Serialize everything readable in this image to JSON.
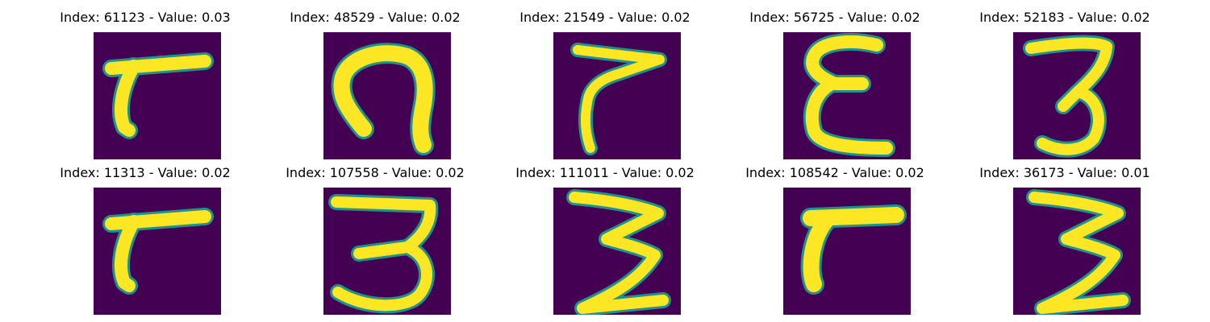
{
  "colors": {
    "background": "#440154",
    "stroke_edge": "#21918c",
    "stroke_core": "#fde725"
  },
  "panels": [
    {
      "title": "Index: 61123 - Value: 0.03",
      "index": 61123,
      "value": 0.03,
      "glyph": "seven"
    },
    {
      "title": "Index: 48529 - Value: 0.02",
      "index": 48529,
      "value": 0.02,
      "glyph": "n"
    },
    {
      "title": "Index: 21549 - Value: 0.02",
      "index": 21549,
      "value": 0.02,
      "glyph": "seven-thin"
    },
    {
      "title": "Index: 56725 - Value: 0.02",
      "index": 56725,
      "value": 0.02,
      "glyph": "e"
    },
    {
      "title": "Index: 52183 - Value: 0.02",
      "index": 52183,
      "value": 0.02,
      "glyph": "three"
    },
    {
      "title": "Index: 11313 - Value: 0.02",
      "index": 11313,
      "value": 0.02,
      "glyph": "seven"
    },
    {
      "title": "Index: 107558 - Value: 0.02",
      "index": 107558,
      "value": 0.02,
      "glyph": "three-wide"
    },
    {
      "title": "Index: 111011 - Value: 0.02",
      "index": 111011,
      "value": 0.02,
      "glyph": "three-zig"
    },
    {
      "title": "Index: 108542 - Value: 0.02",
      "index": 108542,
      "value": 0.02,
      "glyph": "seven-bold"
    },
    {
      "title": "Index: 36173 - Value: 0.01",
      "index": 36173,
      "value": 0.01,
      "glyph": "three-zig"
    }
  ]
}
